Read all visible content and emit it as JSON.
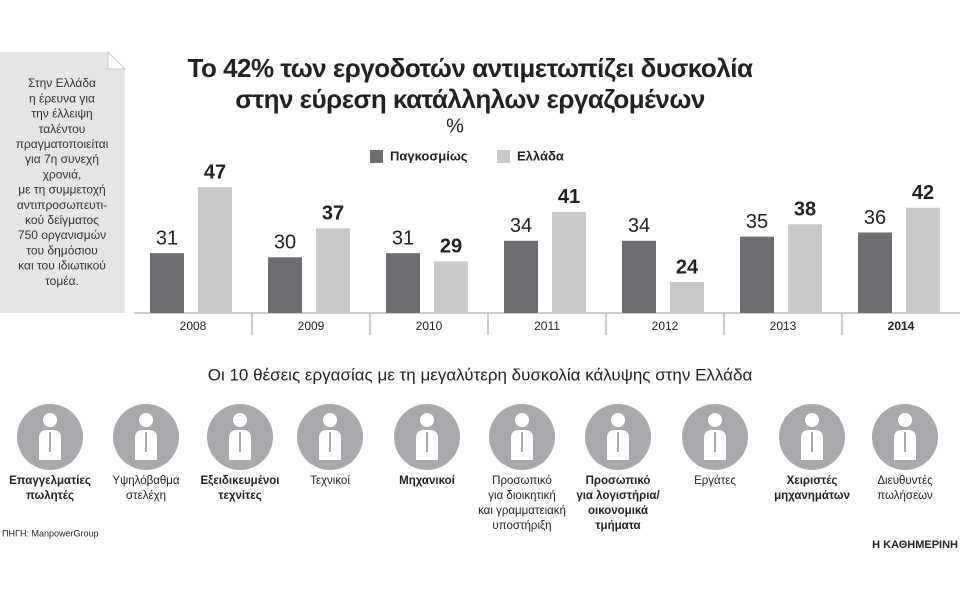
{
  "note": [
    "Στην Ελλάδα",
    "η έρευνα για",
    "την έλλειψη",
    "ταλέντου",
    "πραγματοποιείται",
    "για 7η συνεχή",
    "χρονιά,",
    "με τη συμμετοχή",
    "αντιπροσωπευτι-",
    "κού δείγματος",
    "750 οργανισμών",
    "του δημόσιου",
    "και του ιδιωτικού",
    "τομέα."
  ],
  "chart_data": {
    "type": "bar",
    "title": [
      "Το 42% των εργοδοτών αντιμετωπίζει δυσκολία",
      "στην εύρεση κατάλληλων εργαζομένων"
    ],
    "subtitle": "%",
    "categories": [
      "2008",
      "2009",
      "2010",
      "2011",
      "2012",
      "2013",
      "2014"
    ],
    "series": [
      {
        "name": "Παγκοσμίως",
        "color": "#6d6e71",
        "values": [
          31,
          30,
          31,
          34,
          34,
          35,
          36
        ]
      },
      {
        "name": "Ελλάδα",
        "color": "#c8c9cb",
        "values": [
          47,
          37,
          29,
          41,
          24,
          38,
          42
        ]
      }
    ],
    "ylim": [
      16.5,
      48
    ]
  },
  "jobs_title": "Οι 10 θέσεις εργασίας με τη μεγαλύτερη δυσκολία κάλυψης στην Ελλάδα",
  "jobs": [
    {
      "label": [
        "Επαγγελματίες",
        "πωλητές"
      ],
      "bold": true
    },
    {
      "label": [
        "Υψηλόβαθμα",
        "στελέχη"
      ],
      "bold": false
    },
    {
      "label": [
        "Εξειδικευμένοι",
        "τεχνίτες"
      ],
      "bold": true
    },
    {
      "label": [
        "Τεχνικοί"
      ],
      "bold": false
    },
    {
      "label": [
        "Μηχανικοί"
      ],
      "bold": true
    },
    {
      "label": [
        "Προσωπικό",
        "για διοικητική",
        "και γραμματειακή",
        "υποστήριξη"
      ],
      "bold": false
    },
    {
      "label": [
        "Προσωπικό",
        "για λογιστήρια/",
        "οικονομικά",
        "τμήματα"
      ],
      "bold": true
    },
    {
      "label": [
        "Εργάτες"
      ],
      "bold": false
    },
    {
      "label": [
        "Χειριστές",
        "μηχανημάτων"
      ],
      "bold": true
    },
    {
      "label": [
        "Διευθυντές",
        "πωλήσεων"
      ],
      "bold": false
    }
  ],
  "source": "ΠΗΓΗ: ManpowerGroup",
  "publisher": "Η ΚΑΘΗΜΕΡΙΝΗ"
}
